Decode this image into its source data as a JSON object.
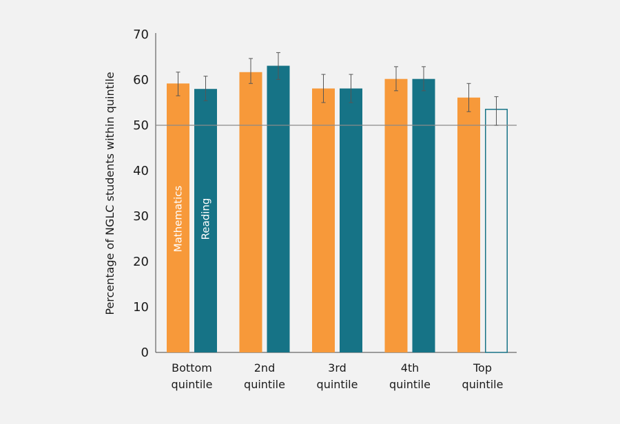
{
  "chart_data": {
    "type": "bar",
    "title": "",
    "xlabel": "",
    "ylabel": "Percentage of NGLC students within quintile",
    "ylim": [
      0,
      70
    ],
    "yticks": [
      "0",
      "10",
      "20",
      "30",
      "40",
      "50",
      "60",
      "70"
    ],
    "reference_line": 50,
    "categories": [
      [
        "Bottom",
        "quintile"
      ],
      [
        "2nd",
        "quintile"
      ],
      [
        "3rd",
        "quintile"
      ],
      [
        "4th",
        "quintile"
      ],
      [
        "Top",
        "quintile"
      ]
    ],
    "series": [
      {
        "name": "Mathematics",
        "color": "#f7993a",
        "values": [
          59.2,
          61.7,
          58.1,
          60.2,
          56.1
        ],
        "error_low": [
          56.5,
          59.2,
          55.0,
          57.6,
          53.0
        ],
        "error_high": [
          61.7,
          64.7,
          61.2,
          62.9,
          59.2
        ],
        "hollow": [
          false,
          false,
          false,
          false,
          false
        ]
      },
      {
        "name": "Reading",
        "color": "#167386",
        "values": [
          58.0,
          63.1,
          58.1,
          60.2,
          53.5
        ],
        "error_low": [
          55.4,
          60.1,
          55.0,
          57.6,
          50.0
        ],
        "error_high": [
          60.8,
          66.0,
          61.2,
          62.9,
          56.3
        ],
        "hollow": [
          false,
          false,
          false,
          false,
          true
        ]
      }
    ]
  }
}
